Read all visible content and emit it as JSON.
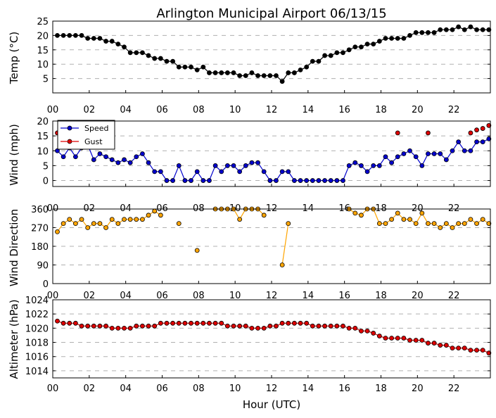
{
  "title": "Arlington Municipal Airport 06/13/15",
  "xlabel": "Hour (UTC)",
  "x_tick_labels": [
    "00",
    "02",
    "04",
    "06",
    "08",
    "10",
    "12",
    "14",
    "16",
    "18",
    "20",
    "22"
  ],
  "colors": {
    "temp": "#000000",
    "speed": "#0000cc",
    "gust": "#dd0000",
    "direction_line": "#ffa500",
    "direction_fill": "#ffa500",
    "pressure": "#dd0000"
  },
  "chart_data": [
    {
      "type": "line",
      "name": "temperature",
      "ylabel": "Temp (°C)",
      "ylim": [
        0,
        25
      ],
      "xlim": [
        0,
        24
      ],
      "yticks": [
        5,
        10,
        15,
        20,
        25
      ],
      "grid": true,
      "series": [
        {
          "name": "Temp",
          "x": [
            0.25,
            0.583,
            0.917,
            1.25,
            1.583,
            1.917,
            2.25,
            2.583,
            2.917,
            3.25,
            3.583,
            3.917,
            4.25,
            4.583,
            4.917,
            5.25,
            5.583,
            5.917,
            6.25,
            6.583,
            6.917,
            7.25,
            7.583,
            7.917,
            8.25,
            8.583,
            8.917,
            9.25,
            9.583,
            9.917,
            10.25,
            10.583,
            10.917,
            11.25,
            11.583,
            11.917,
            12.25,
            12.583,
            12.917,
            13.25,
            13.583,
            13.917,
            14.25,
            14.583,
            14.917,
            15.25,
            15.583,
            15.917,
            16.25,
            16.583,
            16.917,
            17.25,
            17.583,
            17.917,
            18.25,
            18.583,
            18.917,
            19.25,
            19.583,
            19.917,
            20.25,
            20.583,
            20.917,
            21.25,
            21.583,
            21.917,
            22.25,
            22.583,
            22.917,
            23.25,
            23.583,
            23.917
          ],
          "values": [
            20,
            20,
            20,
            20,
            20,
            19,
            19,
            19,
            18,
            18,
            17,
            16,
            14,
            14,
            14,
            13,
            12,
            12,
            11,
            11,
            9,
            9,
            9,
            8,
            9,
            7,
            7,
            7,
            7,
            7,
            6,
            6,
            7,
            6,
            6,
            6,
            6,
            4,
            7,
            7,
            8,
            9,
            11,
            11,
            13,
            13,
            14,
            14,
            15,
            16,
            16,
            17,
            17,
            18,
            19,
            19,
            19,
            19,
            20,
            21,
            21,
            21,
            21,
            22,
            22,
            22,
            23,
            22,
            23,
            22,
            22,
            22
          ]
        }
      ]
    },
    {
      "type": "line",
      "name": "wind",
      "ylabel": "Wind (mph)",
      "ylim": [
        -2,
        20
      ],
      "xlim": [
        0,
        24
      ],
      "yticks": [
        0,
        5,
        10,
        15,
        20
      ],
      "grid": true,
      "legend": {
        "placement": "top-left",
        "entries": [
          "Speed",
          "Gust"
        ]
      },
      "series": [
        {
          "name": "Speed",
          "x": [
            0.25,
            0.583,
            0.917,
            1.25,
            1.583,
            1.917,
            2.25,
            2.583,
            2.917,
            3.25,
            3.583,
            3.917,
            4.25,
            4.583,
            4.917,
            5.25,
            5.583,
            5.917,
            6.25,
            6.583,
            6.917,
            7.25,
            7.583,
            7.917,
            8.25,
            8.583,
            8.917,
            9.25,
            9.583,
            9.917,
            10.25,
            10.583,
            10.917,
            11.25,
            11.583,
            11.917,
            12.25,
            12.583,
            12.917,
            13.25,
            13.583,
            13.917,
            14.25,
            14.583,
            14.917,
            15.25,
            15.583,
            15.917,
            16.25,
            16.583,
            16.917,
            17.25,
            17.583,
            17.917,
            18.25,
            18.583,
            18.917,
            19.25,
            19.583,
            19.917,
            20.25,
            20.583,
            20.917,
            21.25,
            21.583,
            21.917,
            22.25,
            22.583,
            22.917,
            23.25,
            23.583,
            23.917
          ],
          "values": [
            10,
            8,
            11,
            8,
            11,
            12,
            7,
            9,
            8,
            7,
            6,
            7,
            6,
            8,
            9,
            6,
            3,
            3,
            0,
            0,
            5,
            0,
            0,
            3,
            0,
            0,
            5,
            3,
            5,
            5,
            3,
            5,
            6,
            6,
            3,
            0,
            0,
            3,
            3,
            0,
            0,
            0,
            0,
            0,
            0,
            0,
            0,
            0,
            5,
            6,
            5,
            3,
            5,
            5,
            8,
            6,
            8,
            9,
            10,
            8,
            5,
            9,
            9,
            9,
            7,
            10,
            13,
            10,
            10,
            13,
            13,
            14
          ]
        },
        {
          "name": "Gust",
          "x": [
            0.25,
            18.917,
            20.583,
            22.917,
            23.25,
            23.583,
            23.917
          ],
          "values": [
            16,
            16,
            16,
            16,
            17,
            17.5,
            18.5
          ]
        }
      ]
    },
    {
      "type": "line",
      "name": "wind_direction",
      "ylabel": "Wind Direction",
      "ylim": [
        0,
        360
      ],
      "xlim": [
        0,
        24
      ],
      "yticks": [
        0,
        90,
        180,
        270,
        360
      ],
      "grid": true,
      "series": [
        {
          "name": "Direction",
          "segments": [
            {
              "x": [
                0.25,
                0.583,
                0.917,
                1.25,
                1.583,
                1.917,
                2.25,
                2.583,
                2.917,
                3.25,
                3.583,
                3.917,
                4.25,
                4.583,
                4.917,
                5.25,
                5.583,
                5.917
              ],
              "values": [
                250,
                290,
                310,
                290,
                310,
                270,
                290,
                290,
                270,
                310,
                290,
                310,
                310,
                310,
                310,
                330,
                350,
                330
              ]
            },
            {
              "x": [
                6.917
              ],
              "values": [
                290
              ]
            },
            {
              "x": [
                7.917
              ],
              "values": [
                160
              ]
            },
            {
              "x": [
                8.917,
                9.25,
                9.583,
                9.917,
                10.25,
                10.583,
                10.917,
                11.25,
                11.583
              ],
              "values": [
                360,
                360,
                360,
                360,
                310,
                360,
                360,
                360,
                330
              ]
            },
            {
              "x": [
                12.583,
                12.917
              ],
              "values": [
                90,
                290
              ]
            },
            {
              "x": [
                16.25,
                16.583,
                16.917,
                17.25,
                17.583,
                17.917,
                18.25,
                18.583,
                18.917,
                19.25,
                19.583,
                19.917,
                20.25,
                20.583,
                20.917,
                21.25,
                21.583,
                21.917,
                22.25,
                22.583,
                22.917,
                23.25,
                23.583,
                23.917
              ],
              "values": [
                360,
                340,
                330,
                360,
                360,
                290,
                290,
                310,
                340,
                310,
                310,
                290,
                340,
                290,
                290,
                270,
                290,
                270,
                290,
                290,
                310,
                290,
                310,
                290
              ]
            }
          ]
        }
      ]
    },
    {
      "type": "line",
      "name": "altimeter",
      "ylabel": "Altimeter (hPa)",
      "ylim": [
        1013,
        1024
      ],
      "xlim": [
        0,
        24
      ],
      "yticks": [
        1014,
        1016,
        1018,
        1020,
        1022,
        1024
      ],
      "grid": true,
      "series": [
        {
          "name": "Altimeter",
          "x": [
            0.25,
            0.583,
            0.917,
            1.25,
            1.583,
            1.917,
            2.25,
            2.583,
            2.917,
            3.25,
            3.583,
            3.917,
            4.25,
            4.583,
            4.917,
            5.25,
            5.583,
            5.917,
            6.25,
            6.583,
            6.917,
            7.25,
            7.583,
            7.917,
            8.25,
            8.583,
            8.917,
            9.25,
            9.583,
            9.917,
            10.25,
            10.583,
            10.917,
            11.25,
            11.583,
            11.917,
            12.25,
            12.583,
            12.917,
            13.25,
            13.583,
            13.917,
            14.25,
            14.583,
            14.917,
            15.25,
            15.583,
            15.917,
            16.25,
            16.583,
            16.917,
            17.25,
            17.583,
            17.917,
            18.25,
            18.583,
            18.917,
            19.25,
            19.583,
            19.917,
            20.25,
            20.583,
            20.917,
            21.25,
            21.583,
            21.917,
            22.25,
            22.583,
            22.917,
            23.25,
            23.583,
            23.917
          ],
          "values": [
            1021,
            1020.7,
            1020.7,
            1020.7,
            1020.3,
            1020.3,
            1020.3,
            1020.3,
            1020.3,
            1020,
            1020,
            1020,
            1020,
            1020.3,
            1020.3,
            1020.3,
            1020.3,
            1020.7,
            1020.7,
            1020.7,
            1020.7,
            1020.7,
            1020.7,
            1020.7,
            1020.7,
            1020.7,
            1020.7,
            1020.7,
            1020.3,
            1020.3,
            1020.3,
            1020.3,
            1020,
            1020,
            1020,
            1020.3,
            1020.3,
            1020.7,
            1020.7,
            1020.7,
            1020.7,
            1020.7,
            1020.3,
            1020.3,
            1020.3,
            1020.3,
            1020.3,
            1020.3,
            1020,
            1020,
            1019.6,
            1019.6,
            1019.3,
            1018.9,
            1018.6,
            1018.6,
            1018.6,
            1018.6,
            1018.3,
            1018.3,
            1018.3,
            1017.9,
            1017.9,
            1017.6,
            1017.6,
            1017.2,
            1017.2,
            1017.2,
            1016.9,
            1016.9,
            1016.9,
            1016.5
          ]
        }
      ]
    }
  ]
}
